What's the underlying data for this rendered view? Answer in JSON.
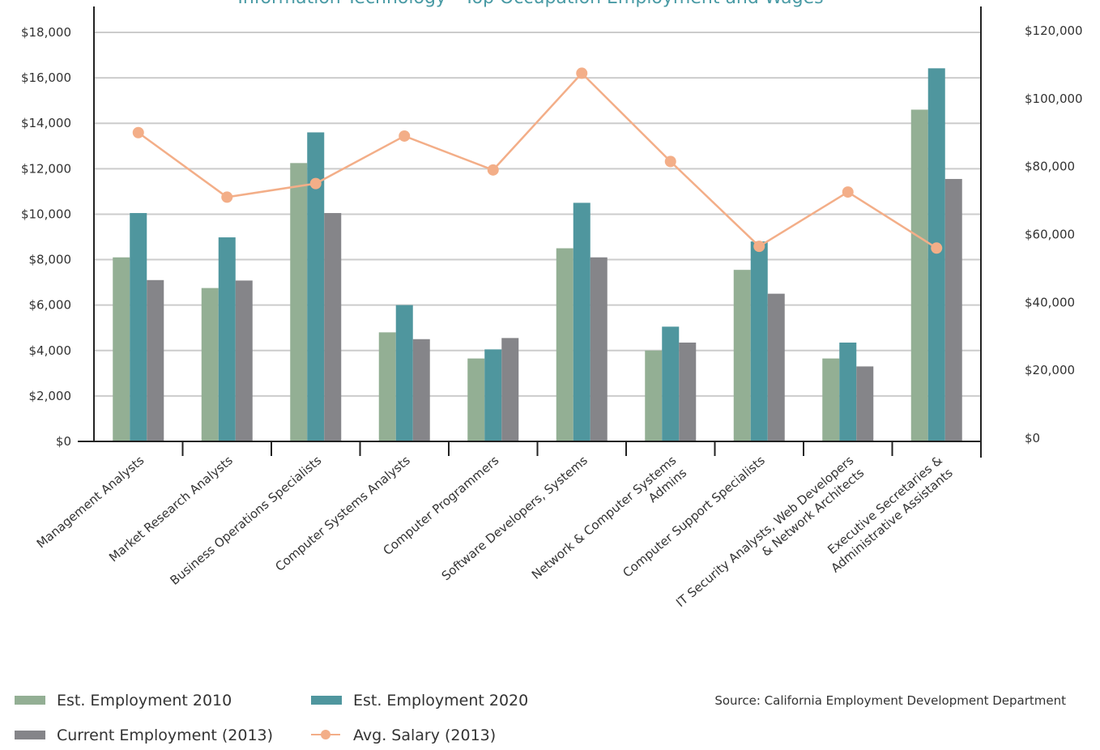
{
  "colors": {
    "emp2010": "#93af94",
    "emp2020": "#4f969e",
    "current": "#858589",
    "salary": "#f3ae88",
    "grid": "#cccccc",
    "axis": "#222222",
    "title": "#4a9ba5"
  },
  "title": "Information Technology - Top Occupation Employment and Wages",
  "source": "Source: California Employment Development Department",
  "chart_data": {
    "type": "bar",
    "categories": [
      [
        "Management Analysts"
      ],
      [
        "Market Research Analysts"
      ],
      [
        "Business Operations Specialists"
      ],
      [
        "Computer Systems Analysts"
      ],
      [
        "Computer Programmers"
      ],
      [
        "Software Developers, Systems"
      ],
      [
        "Network & Computer Systems",
        "Admins"
      ],
      [
        "Computer Support Specialists"
      ],
      [
        "IT Security Analysts, Web Developers",
        "& Network Architects"
      ],
      [
        "Executive Secretaries &",
        "Administrative Assistants"
      ]
    ],
    "series": [
      {
        "name": "Est. Employment 2010",
        "type": "bar",
        "axis": "left",
        "values": [
          8100,
          6750,
          12250,
          4800,
          3650,
          8500,
          4000,
          7550,
          3650,
          14600
        ]
      },
      {
        "name": "Est. Employment 2020",
        "type": "bar",
        "axis": "left",
        "values": [
          10050,
          8980,
          13600,
          6000,
          4050,
          10500,
          5050,
          8800,
          4350,
          16420
        ]
      },
      {
        "name": "Current Employment (2013)",
        "type": "bar",
        "axis": "left",
        "values": [
          7100,
          7080,
          10050,
          4500,
          4550,
          8100,
          4350,
          6500,
          3300,
          11550
        ]
      },
      {
        "name": "Avg. Salary (2013)",
        "type": "line",
        "axis": "right",
        "values": [
          90000,
          71000,
          75000,
          89000,
          79000,
          107500,
          81500,
          56500,
          72500,
          56000
        ]
      }
    ],
    "ylim_left": [
      0,
      18000
    ],
    "yticks_left": [
      0,
      2000,
      4000,
      6000,
      8000,
      10000,
      12000,
      14000,
      16000,
      18000
    ],
    "ytick_labels_left": [
      "$0",
      "$2,000",
      "$4,000",
      "$6,000",
      "$8,000",
      "$10,000",
      "$12,000",
      "$14,000",
      "$16,000",
      "$18,000"
    ],
    "ylim_right": [
      0,
      120000
    ],
    "yticks_right": [
      0,
      20000,
      40000,
      60000,
      80000,
      100000,
      120000
    ],
    "ytick_labels_right": [
      "$0",
      "$20,000",
      "$40,000",
      "$60,000",
      "$80,000",
      "$100,000",
      "$120,000"
    ],
    "grid": true,
    "legend": [
      "Est. Employment 2010",
      "Est. Employment 2020",
      "Current Employment (2013)",
      "Avg. Salary (2013)"
    ],
    "legend_position": "bottom"
  }
}
